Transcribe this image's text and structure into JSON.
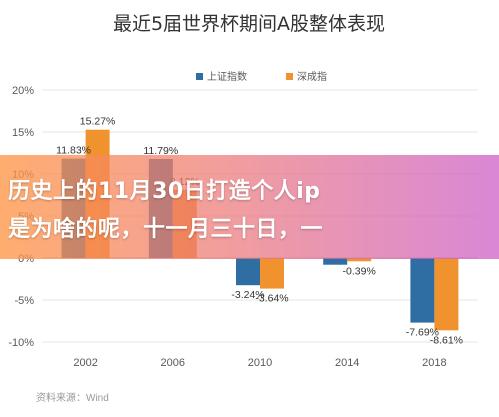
{
  "chart_data": {
    "type": "bar",
    "title": "最近5届世界杯期间A股整体表现",
    "categories": [
      "2002",
      "2006",
      "2010",
      "2014",
      "2018"
    ],
    "series": [
      {
        "name": "上证指数",
        "color": "#2f6ea3",
        "values": [
          11.83,
          11.79,
          -3.24,
          -0.8,
          -7.69
        ]
      },
      {
        "name": "深成指",
        "color": "#f0922e",
        "values": [
          15.27,
          8.12,
          -3.64,
          -0.39,
          -8.61
        ]
      }
    ],
    "data_labels": [
      [
        "11.83%",
        "11.79%",
        "-3.24%",
        "",
        "-7.69%"
      ],
      [
        "15.27%",
        "8.12%",
        "-3.64%",
        "-0.39%",
        "-8.61%"
      ]
    ],
    "y_ticks": [
      "20%",
      "15%",
      "10%",
      "5%",
      "0%",
      "-5%",
      "-10%"
    ],
    "y_tick_values": [
      20,
      15,
      10,
      5,
      0,
      -5,
      -10
    ],
    "ylim": [
      -10,
      20
    ],
    "grid": true,
    "legend_position": "top-center"
  },
  "banner": {
    "line1": "历史上的11月30日打造个人ip",
    "line2": "是为啥的呢，十一月三十日，一"
  },
  "source_text": "资料来源：Wind"
}
